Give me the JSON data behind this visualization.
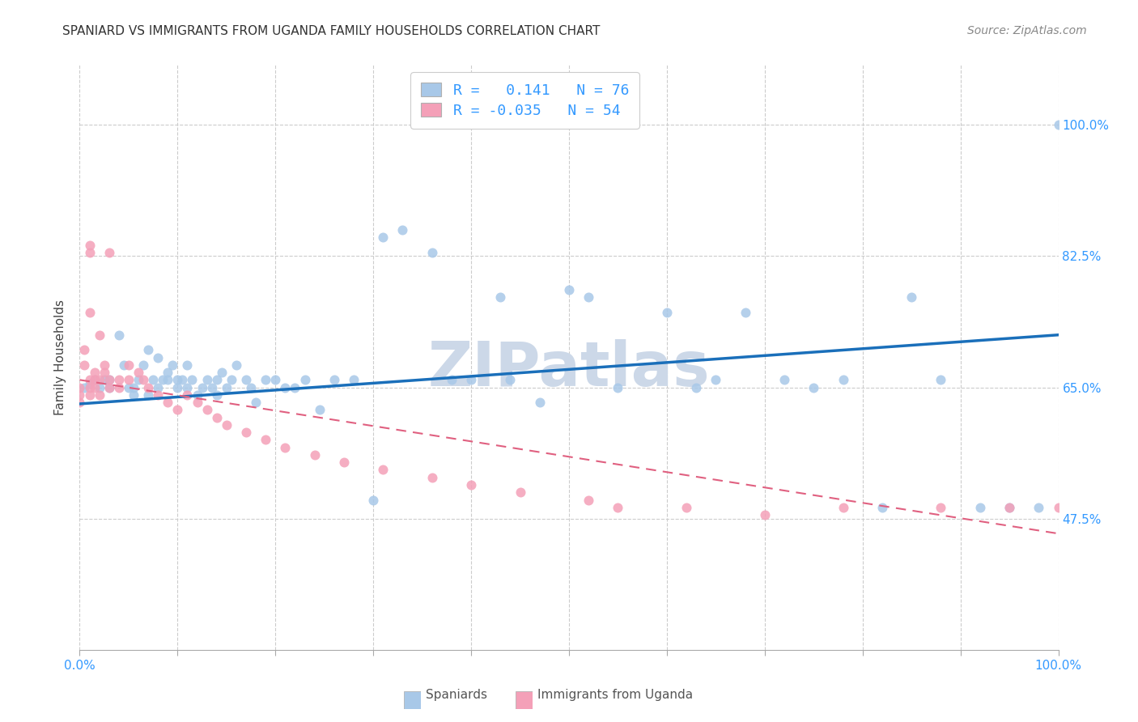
{
  "title": "SPANIARD VS IMMIGRANTS FROM UGANDA FAMILY HOUSEHOLDS CORRELATION CHART",
  "source": "Source: ZipAtlas.com",
  "ylabel": "Family Households",
  "y_ticks_pct": [
    47.5,
    65.0,
    82.5,
    100.0
  ],
  "y_tick_labels": [
    "47.5%",
    "65.0%",
    "82.5%",
    "100.0%"
  ],
  "r_spaniard": 0.141,
  "n_spaniard": 76,
  "r_uganda": -0.035,
  "n_uganda": 54,
  "color_spaniard": "#a8c8e8",
  "color_uganda": "#f4a0b8",
  "line_color_spaniard": "#1a6fba",
  "line_color_uganda": "#e06080",
  "watermark": "ZIPatlas",
  "watermark_color": "#ccd8e8",
  "spaniard_x": [
    0.005,
    0.01,
    0.015,
    0.02,
    0.025,
    0.03,
    0.03,
    0.04,
    0.045,
    0.05,
    0.055,
    0.055,
    0.06,
    0.065,
    0.07,
    0.07,
    0.075,
    0.08,
    0.08,
    0.085,
    0.09,
    0.09,
    0.095,
    0.1,
    0.1,
    0.105,
    0.11,
    0.11,
    0.115,
    0.12,
    0.125,
    0.13,
    0.135,
    0.14,
    0.14,
    0.145,
    0.15,
    0.155,
    0.16,
    0.17,
    0.175,
    0.18,
    0.19,
    0.2,
    0.21,
    0.22,
    0.23,
    0.245,
    0.26,
    0.28,
    0.3,
    0.31,
    0.33,
    0.36,
    0.38,
    0.4,
    0.43,
    0.44,
    0.47,
    0.5,
    0.52,
    0.55,
    0.6,
    0.63,
    0.65,
    0.68,
    0.72,
    0.75,
    0.78,
    0.82,
    0.85,
    0.88,
    0.92,
    0.95,
    0.98,
    1.0
  ],
  "spaniard_y": [
    0.65,
    0.655,
    0.66,
    0.65,
    0.66,
    0.65,
    0.66,
    0.72,
    0.68,
    0.65,
    0.65,
    0.64,
    0.66,
    0.68,
    0.64,
    0.7,
    0.66,
    0.65,
    0.69,
    0.66,
    0.66,
    0.67,
    0.68,
    0.66,
    0.65,
    0.66,
    0.65,
    0.68,
    0.66,
    0.64,
    0.65,
    0.66,
    0.65,
    0.64,
    0.66,
    0.67,
    0.65,
    0.66,
    0.68,
    0.66,
    0.65,
    0.63,
    0.66,
    0.66,
    0.65,
    0.65,
    0.66,
    0.62,
    0.66,
    0.66,
    0.5,
    0.85,
    0.86,
    0.83,
    0.66,
    0.66,
    0.77,
    0.66,
    0.63,
    0.78,
    0.77,
    0.65,
    0.75,
    0.65,
    0.66,
    0.75,
    0.66,
    0.65,
    0.66,
    0.49,
    0.77,
    0.66,
    0.49,
    0.49,
    0.49,
    1.0
  ],
  "uganda_x": [
    0.0,
    0.0,
    0.0,
    0.005,
    0.005,
    0.01,
    0.01,
    0.01,
    0.01,
    0.01,
    0.01,
    0.015,
    0.015,
    0.015,
    0.02,
    0.02,
    0.02,
    0.025,
    0.025,
    0.03,
    0.03,
    0.03,
    0.04,
    0.04,
    0.05,
    0.05,
    0.06,
    0.065,
    0.07,
    0.08,
    0.09,
    0.1,
    0.11,
    0.12,
    0.13,
    0.14,
    0.15,
    0.17,
    0.19,
    0.21,
    0.24,
    0.27,
    0.31,
    0.36,
    0.4,
    0.45,
    0.52,
    0.55,
    0.62,
    0.7,
    0.78,
    0.88,
    0.95,
    1.0
  ],
  "uganda_y": [
    0.65,
    0.64,
    0.63,
    0.7,
    0.68,
    0.75,
    0.84,
    0.83,
    0.66,
    0.65,
    0.64,
    0.67,
    0.66,
    0.65,
    0.72,
    0.66,
    0.64,
    0.68,
    0.67,
    0.83,
    0.66,
    0.65,
    0.66,
    0.65,
    0.68,
    0.66,
    0.67,
    0.66,
    0.65,
    0.64,
    0.63,
    0.62,
    0.64,
    0.63,
    0.62,
    0.61,
    0.6,
    0.59,
    0.58,
    0.57,
    0.56,
    0.55,
    0.54,
    0.53,
    0.52,
    0.51,
    0.5,
    0.49,
    0.49,
    0.48,
    0.49,
    0.49,
    0.49,
    0.49
  ]
}
